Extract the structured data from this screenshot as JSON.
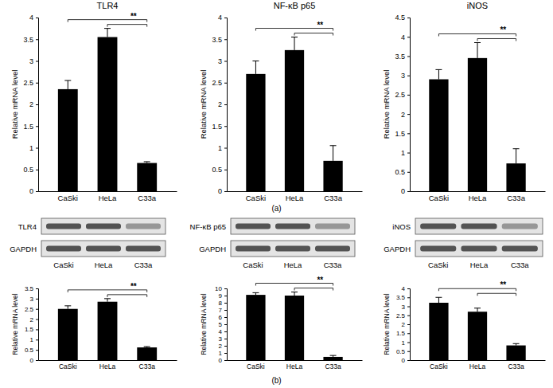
{
  "chart_data": [
    {
      "type": "bar",
      "title": "TLR4",
      "y_label": "Relative mRNA level",
      "categories": [
        "CaSki",
        "HeLa",
        "C33a"
      ],
      "values": [
        2.35,
        3.55,
        0.65
      ],
      "errors": [
        0.2,
        0.2,
        0.03
      ],
      "color": "#000000",
      "ylim": [
        0,
        4
      ],
      "yticks": [
        0,
        0.5,
        1,
        1.5,
        2,
        2.5,
        3,
        3.5,
        4
      ],
      "annotations": [
        {
          "text": "**",
          "categories": [
            "CaSki",
            "HeLa"
          ],
          "vs": "C33a"
        }
      ]
    },
    {
      "type": "bar",
      "title": "NF-κB p65",
      "y_label": "Relative mRNA level",
      "categories": [
        "CaSki",
        "HeLa",
        "C33a"
      ],
      "values": [
        2.7,
        3.25,
        0.7
      ],
      "errors": [
        0.3,
        0.3,
        0.35
      ],
      "color": "#000000",
      "ylim": [
        0,
        4
      ],
      "yticks": [
        0,
        0.5,
        1,
        1.5,
        2,
        2.5,
        3,
        3.5,
        4
      ],
      "annotations": [
        {
          "text": "**",
          "categories": [
            "CaSki",
            "HeLa"
          ],
          "vs": "C33a"
        }
      ]
    },
    {
      "type": "bar",
      "title": "iNOS",
      "y_label": "Relative mRNA level",
      "categories": [
        "CaSki",
        "HeLa",
        "C33a"
      ],
      "values": [
        2.9,
        3.45,
        0.72
      ],
      "errors": [
        0.25,
        0.4,
        0.38
      ],
      "color": "#000000",
      "ylim": [
        0,
        4.5
      ],
      "yticks": [
        0,
        0.5,
        1,
        1.5,
        2,
        2.5,
        3,
        3.5,
        4,
        4.5
      ],
      "annotations": [
        {
          "text": "**",
          "categories": [
            "CaSki",
            "HeLa"
          ],
          "vs": "C33a"
        }
      ]
    },
    {
      "type": "bar",
      "y_label": "Relative mRNA level",
      "categories": [
        "CaSki",
        "HeLa",
        "C33a"
      ],
      "values": [
        2.5,
        2.85,
        0.62
      ],
      "errors": [
        0.15,
        0.15,
        0.04
      ],
      "color": "#000000",
      "ylim": [
        0,
        3.5
      ],
      "yticks": [
        0,
        0.5,
        1,
        1.5,
        2,
        2.5,
        3,
        3.5
      ],
      "annotations": [
        {
          "text": "**",
          "categories": [
            "CaSki",
            "HeLa"
          ],
          "vs": "C33a"
        }
      ]
    },
    {
      "type": "bar",
      "y_label": "Relative mRNA level",
      "categories": [
        "CaSki",
        "HeLa",
        "C33a"
      ],
      "values": [
        9.1,
        9.0,
        0.45
      ],
      "errors": [
        0.3,
        0.5,
        0.2
      ],
      "color": "#000000",
      "ylim": [
        0,
        10
      ],
      "yticks": [
        0,
        1,
        2,
        3,
        4,
        5,
        6,
        7,
        8,
        9,
        10
      ],
      "annotations": [
        {
          "text": "**",
          "categories": [
            "CaSki",
            "HeLa"
          ],
          "vs": "C33a"
        }
      ]
    },
    {
      "type": "bar",
      "y_label": "Relative mRNA level",
      "categories": [
        "CaSki",
        "HeLa",
        "C33a"
      ],
      "values": [
        3.2,
        2.7,
        0.82
      ],
      "errors": [
        0.3,
        0.2,
        0.1
      ],
      "color": "#000000",
      "ylim": [
        0,
        4
      ],
      "yticks": [
        0,
        0.5,
        1,
        1.5,
        2,
        2.5,
        3,
        3.5,
        4
      ],
      "annotations": [
        {
          "text": "**",
          "categories": [
            "CaSki",
            "HeLa"
          ],
          "vs": "C33a"
        }
      ]
    }
  ],
  "blots": [
    {
      "labels": [
        "TLR4",
        "GAPDH"
      ],
      "lanes": [
        "CaSki",
        "HeLa",
        "C33a"
      ]
    },
    {
      "labels": [
        "NF-κB p65",
        "GAPDH"
      ],
      "lanes": [
        "CaSki",
        "HeLa",
        "C33a"
      ]
    },
    {
      "labels": [
        "iNOS",
        "GAPDH"
      ],
      "lanes": [
        "CaSki",
        "HeLa",
        "C33a"
      ]
    }
  ],
  "panel_labels": [
    "(a)",
    "(b)"
  ]
}
